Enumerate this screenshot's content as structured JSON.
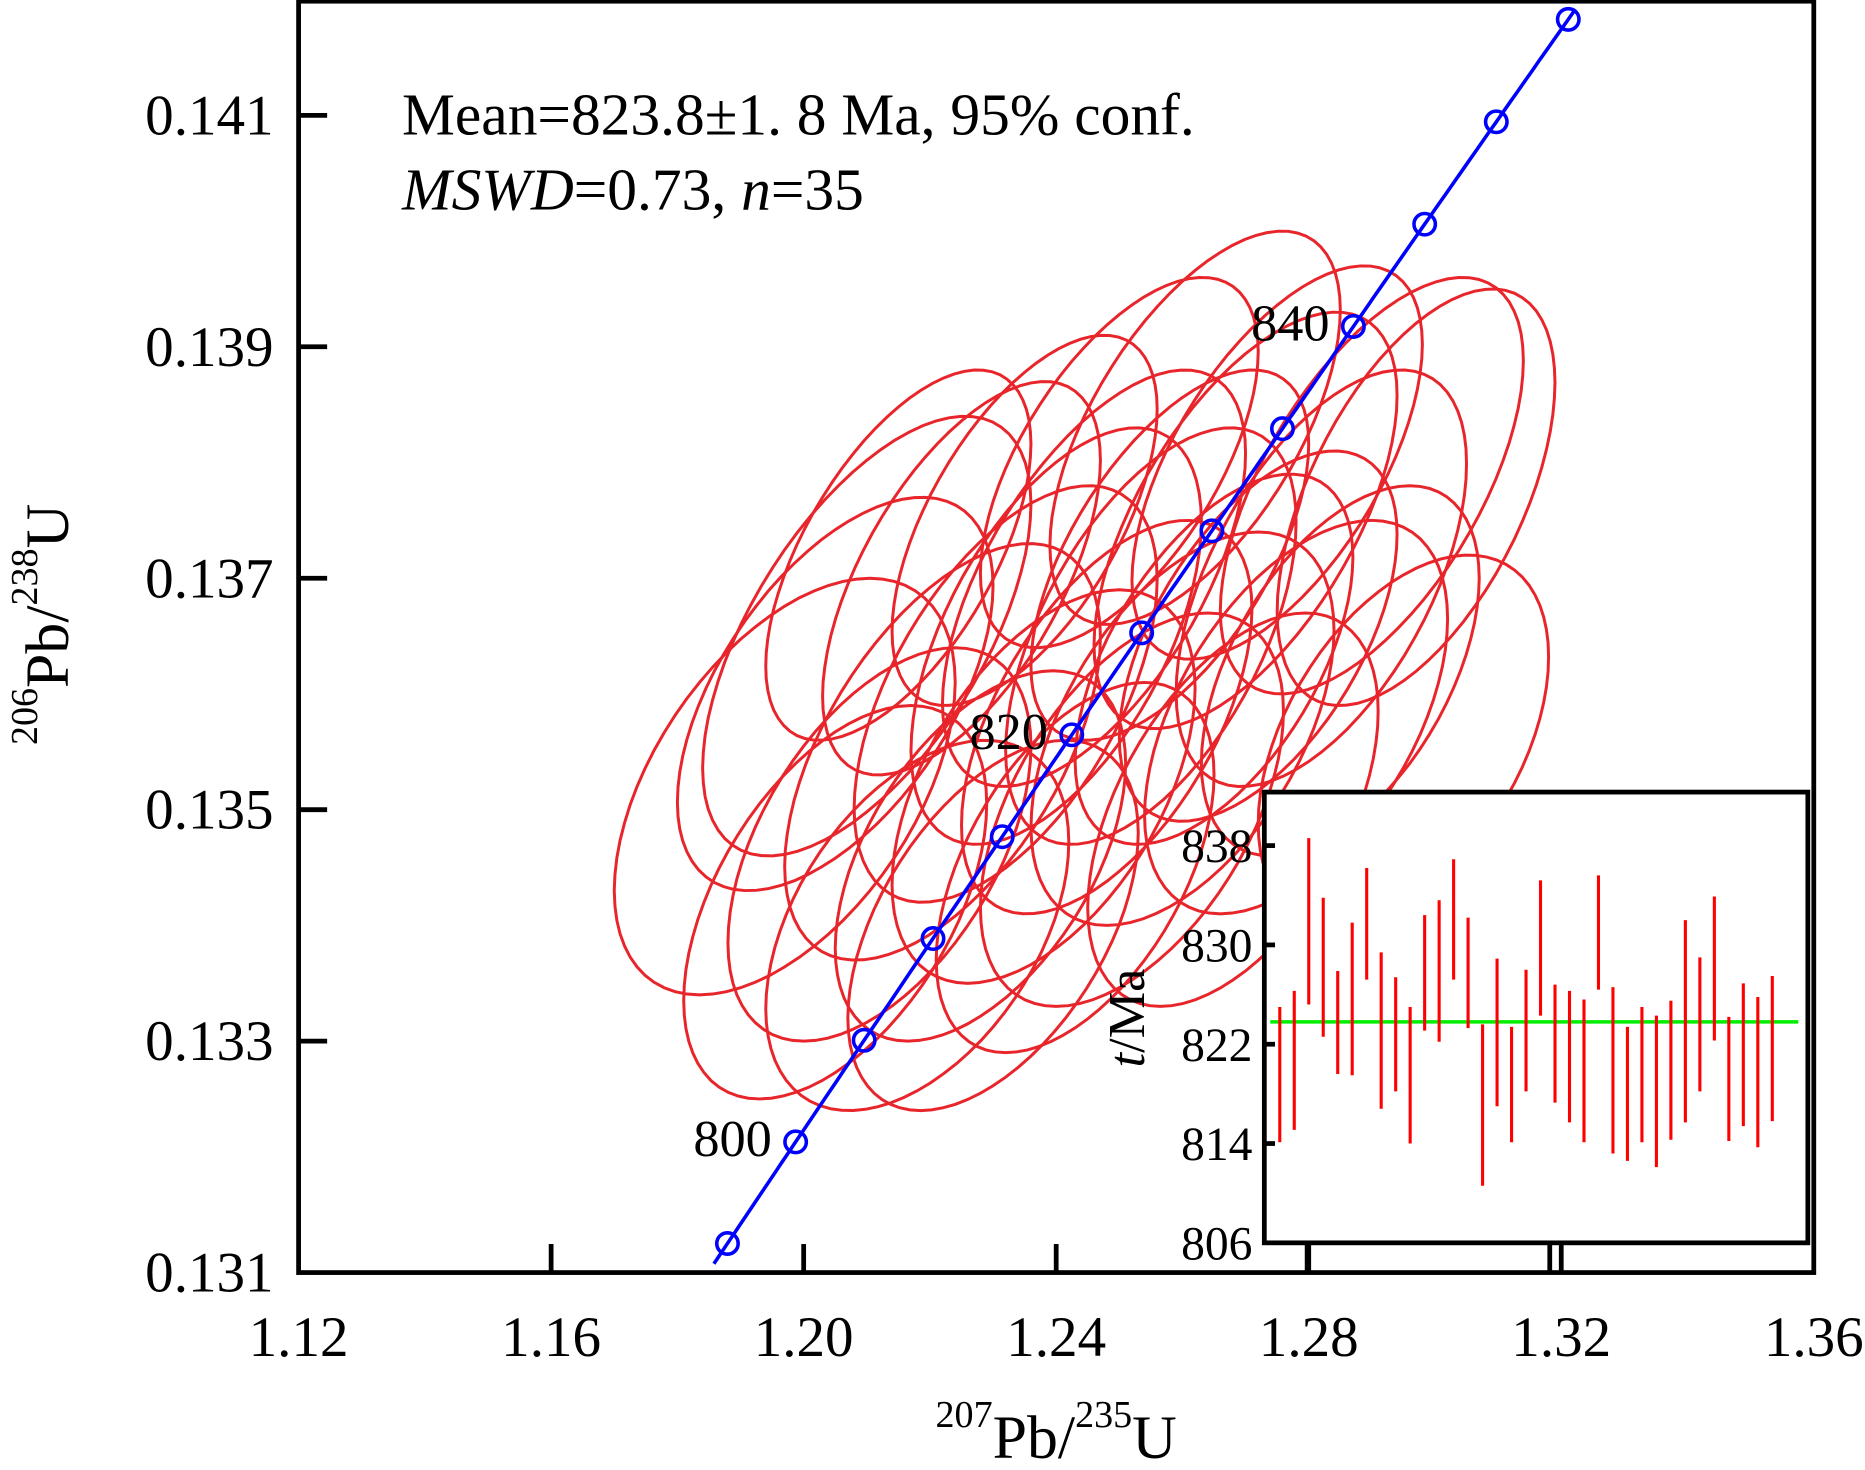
{
  "chart_data": [
    {
      "type": "scatter",
      "subtype": "concordia",
      "xlabel": {
        "sup1": "207",
        "base1": "Pb/",
        "sup2": "235",
        "base2": "U"
      },
      "ylabel": {
        "sup1": "206",
        "base1": "Pb/",
        "sup2": "238",
        "base2": "U"
      },
      "xlim": [
        1.12,
        1.36
      ],
      "ylim": [
        0.131,
        0.142
      ],
      "xticks": [
        "1.12",
        "1.16",
        "1.20",
        "1.24",
        "1.28",
        "1.32",
        "1.36"
      ],
      "yticks": [
        "0.131",
        "0.133",
        "0.135",
        "0.137",
        "0.139",
        "0.141"
      ],
      "grid": false,
      "annotation": {
        "line1": "Mean=823.8±1. 8 Ma,  95% conf.",
        "mswd_label": "MSWD",
        "mswd_value": "=0.73,  ",
        "n_label": "n",
        "n_value": "=35"
      },
      "concordia": {
        "color": "#0000ff",
        "marker_ages_ma": [
          795,
          800,
          805,
          810,
          815,
          820,
          825,
          830,
          835,
          840,
          845,
          850,
          855
        ],
        "labels": [
          {
            "age": 800,
            "text": "800"
          },
          {
            "age": 820,
            "text": "820"
          },
          {
            "age": 840,
            "text": "840"
          }
        ]
      },
      "ellipse_color": "#e8252b",
      "ellipses": [
        {
          "x": 1.197,
          "y": 0.1352,
          "hx": 0.027,
          "hy": 0.0018,
          "rho": 0.5
        },
        {
          "x": 1.205,
          "y": 0.136,
          "hx": 0.025,
          "hy": 0.0017,
          "rho": 0.55
        },
        {
          "x": 1.212,
          "y": 0.1347,
          "hx": 0.024,
          "hy": 0.0017,
          "rho": 0.5
        },
        {
          "x": 1.21,
          "y": 0.1365,
          "hx": 0.026,
          "hy": 0.0019,
          "rho": 0.6
        },
        {
          "x": 1.218,
          "y": 0.134,
          "hx": 0.024,
          "hy": 0.0016,
          "rho": 0.45
        },
        {
          "x": 1.222,
          "y": 0.1355,
          "hx": 0.025,
          "hy": 0.0018,
          "rho": 0.55
        },
        {
          "x": 1.225,
          "y": 0.137,
          "hx": 0.022,
          "hy": 0.0017,
          "rho": 0.6
        },
        {
          "x": 1.228,
          "y": 0.1346,
          "hx": 0.023,
          "hy": 0.0016,
          "rho": 0.5
        },
        {
          "x": 1.232,
          "y": 0.136,
          "hx": 0.024,
          "hy": 0.0018,
          "rho": 0.55
        },
        {
          "x": 1.235,
          "y": 0.1375,
          "hx": 0.021,
          "hy": 0.0016,
          "rho": 0.6
        },
        {
          "x": 1.238,
          "y": 0.1352,
          "hx": 0.024,
          "hy": 0.0017,
          "rho": 0.5
        },
        {
          "x": 1.24,
          "y": 0.1365,
          "hx": 0.023,
          "hy": 0.0018,
          "rho": 0.55
        },
        {
          "x": 1.243,
          "y": 0.1345,
          "hx": 0.022,
          "hy": 0.0016,
          "rho": 0.5
        },
        {
          "x": 1.246,
          "y": 0.137,
          "hx": 0.024,
          "hy": 0.0018,
          "rho": 0.6
        },
        {
          "x": 1.248,
          "y": 0.1358,
          "hx": 0.023,
          "hy": 0.0017,
          "rho": 0.55
        },
        {
          "x": 1.25,
          "y": 0.138,
          "hx": 0.022,
          "hy": 0.0016,
          "rho": 0.6
        },
        {
          "x": 1.252,
          "y": 0.135,
          "hx": 0.024,
          "hy": 0.0017,
          "rho": 0.5
        },
        {
          "x": 1.255,
          "y": 0.1365,
          "hx": 0.023,
          "hy": 0.0018,
          "rho": 0.55
        },
        {
          "x": 1.258,
          "y": 0.1372,
          "hx": 0.022,
          "hy": 0.0016,
          "rho": 0.6
        },
        {
          "x": 1.26,
          "y": 0.1357,
          "hx": 0.024,
          "hy": 0.0017,
          "rho": 0.5
        },
        {
          "x": 1.262,
          "y": 0.1383,
          "hx": 0.023,
          "hy": 0.0017,
          "rho": 0.6
        },
        {
          "x": 1.265,
          "y": 0.1363,
          "hx": 0.022,
          "hy": 0.0016,
          "rho": 0.55
        },
        {
          "x": 1.268,
          "y": 0.135,
          "hx": 0.023,
          "hy": 0.0017,
          "rho": 0.5
        },
        {
          "x": 1.27,
          "y": 0.1375,
          "hx": 0.024,
          "hy": 0.0018,
          "rho": 0.6
        },
        {
          "x": 1.272,
          "y": 0.1365,
          "hx": 0.022,
          "hy": 0.0016,
          "rho": 0.55
        },
        {
          "x": 1.275,
          "y": 0.138,
          "hx": 0.023,
          "hy": 0.0017,
          "rho": 0.6
        },
        {
          "x": 1.278,
          "y": 0.1358,
          "hx": 0.024,
          "hy": 0.0017,
          "rho": 0.5
        },
        {
          "x": 1.282,
          "y": 0.137,
          "hx": 0.023,
          "hy": 0.0018,
          "rho": 0.55
        },
        {
          "x": 1.285,
          "y": 0.1362,
          "hx": 0.022,
          "hy": 0.0016,
          "rho": 0.5
        },
        {
          "x": 1.29,
          "y": 0.1378,
          "hx": 0.024,
          "hy": 0.0018,
          "rho": 0.6
        },
        {
          "x": 1.295,
          "y": 0.1356,
          "hx": 0.023,
          "hy": 0.0016,
          "rho": 0.45
        },
        {
          "x": 1.297,
          "y": 0.1377,
          "hx": 0.022,
          "hy": 0.0018,
          "rho": 0.55
        },
        {
          "x": 1.215,
          "y": 0.1372,
          "hx": 0.021,
          "hy": 0.0016,
          "rho": 0.6
        },
        {
          "x": 1.23,
          "y": 0.134,
          "hx": 0.023,
          "hy": 0.0016,
          "rho": 0.5
        },
        {
          "x": 1.205,
          "y": 0.1342,
          "hx": 0.024,
          "hy": 0.0017,
          "rho": 0.5
        }
      ]
    },
    {
      "type": "bar",
      "subtype": "weighted-mean-error-bars",
      "ylabel": {
        "italic": "t",
        "rest": "/Ma"
      },
      "ylim": [
        806,
        842
      ],
      "yticks": [
        "838",
        "830",
        "822",
        "814",
        "806"
      ],
      "mean": 823.8,
      "mean_color": "#00ee00",
      "bar_color": "#ff0000",
      "bars": [
        [
          825.0,
          814.1
        ],
        [
          826.3,
          815.1
        ],
        [
          838.6,
          825.2
        ],
        [
          833.8,
          822.6
        ],
        [
          827.9,
          819.6
        ],
        [
          831.8,
          819.5
        ],
        [
          836.2,
          827.2
        ],
        [
          829.4,
          816.8
        ],
        [
          827.4,
          818.2
        ],
        [
          825.0,
          814.0
        ],
        [
          832.4,
          823.1
        ],
        [
          833.6,
          822.2
        ],
        [
          836.9,
          827.2
        ],
        [
          832.2,
          823.3
        ],
        [
          823.6,
          810.6
        ],
        [
          828.9,
          817.0
        ],
        [
          823.4,
          814.1
        ],
        [
          828.0,
          818.2
        ],
        [
          835.2,
          824.3
        ],
        [
          826.8,
          817.3
        ],
        [
          826.3,
          815.7
        ],
        [
          825.6,
          814.1
        ],
        [
          835.6,
          826.4
        ],
        [
          826.6,
          813.2
        ],
        [
          823.4,
          812.6
        ],
        [
          825.0,
          814.1
        ],
        [
          824.3,
          812.1
        ],
        [
          825.5,
          814.3
        ],
        [
          832.0,
          815.7
        ],
        [
          829.0,
          818.2
        ],
        [
          833.9,
          822.3
        ],
        [
          824.2,
          814.2
        ],
        [
          826.9,
          815.4
        ],
        [
          825.8,
          813.7
        ],
        [
          827.5,
          815.8
        ]
      ]
    }
  ]
}
